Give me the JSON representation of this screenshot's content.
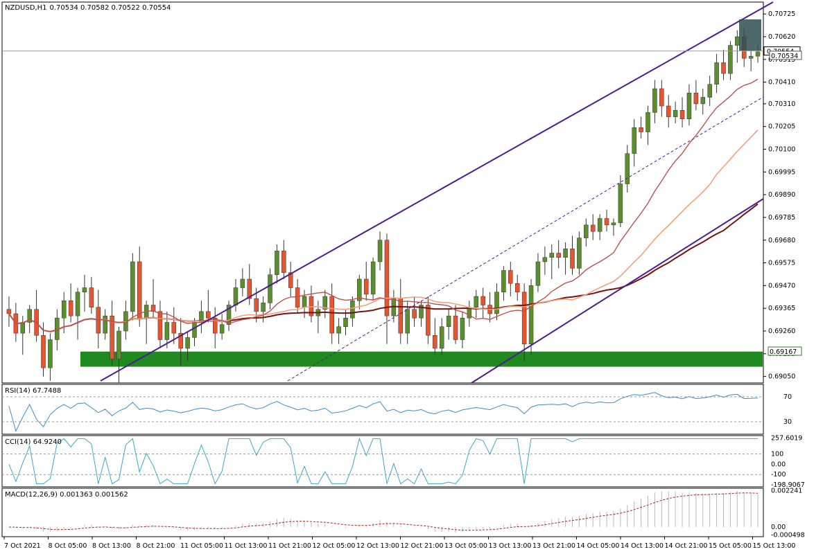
{
  "header": {
    "symbol": "NZDUSD,H1",
    "ohlc": "0.70534 0.70582 0.70522 0.70554"
  },
  "indicators": {
    "rsi_label": "RSI(14) 67.7488",
    "cci_label": "CCI(14) 64.9240",
    "macd_label": "MACD(12,26,9) 0.001363 0.001562"
  },
  "price_axis": {
    "ticks": [
      "0.70725",
      "0.70620",
      "0.70515",
      "0.70410",
      "0.70310",
      "0.70205",
      "0.70100",
      "0.69995",
      "0.69890",
      "0.69785",
      "0.69680",
      "0.69575",
      "0.69470",
      "0.69365",
      "0.69260",
      "0.69155",
      "0.69050"
    ],
    "current_price": "0.70554",
    "label_2": "0.70534",
    "zone_label": "0.69167"
  },
  "rsi_axis": {
    "ticks": [
      "70",
      "30"
    ]
  },
  "cci_axis": {
    "ticks": [
      "257.6019",
      "100",
      "0.00",
      "-100",
      "-198.9067"
    ]
  },
  "macd_axis": {
    "ticks": [
      "0.002241",
      "0.00",
      "-0.000498"
    ]
  },
  "time_axis": {
    "labels": [
      "7 Oct 2021",
      "8 Oct 05:00",
      "8 Oct 13:00",
      "8 Oct 21:00",
      "11 Oct 05:00",
      "11 Oct 13:00",
      "11 Oct 21:00",
      "12 Oct 05:00",
      "12 Oct 13:00",
      "12 Oct 21:00",
      "13 Oct 05:00",
      "13 Oct 13:00",
      "13 Oct 21:00",
      "14 Oct 05:00",
      "14 Oct 13:00",
      "14 Oct 21:00",
      "15 Oct 05:00",
      "15 Oct 13:00"
    ]
  },
  "colors": {
    "bull": "#5b8f2e",
    "bear": "#e8542e",
    "channel": "#4b1d8f",
    "zone": "#1f8a1f",
    "ma_fast": "#c0504d",
    "ma_mid": "#f2a07b",
    "ma_slow": "#7a1010",
    "rsi_line": "#3a8fc4",
    "cci_line": "#3aa8c4",
    "macd_signal": "#b22222"
  },
  "chart_data": {
    "type": "candlestick",
    "symbol": "NZDUSD",
    "timeframe": "H1",
    "ylim": [
      0.6902,
      0.7078
    ],
    "candles": [
      [
        0.6936,
        0.6942,
        0.6928,
        0.6934
      ],
      [
        0.6934,
        0.6939,
        0.6921,
        0.6925
      ],
      [
        0.6925,
        0.6933,
        0.6915,
        0.693
      ],
      [
        0.693,
        0.6938,
        0.6925,
        0.6936
      ],
      [
        0.6936,
        0.6945,
        0.6921,
        0.6924
      ],
      [
        0.6924,
        0.693,
        0.6905,
        0.6909
      ],
      [
        0.6909,
        0.6925,
        0.6903,
        0.6922
      ],
      [
        0.6922,
        0.6936,
        0.6917,
        0.6932
      ],
      [
        0.6932,
        0.6944,
        0.6925,
        0.694
      ],
      [
        0.694,
        0.6948,
        0.693,
        0.6933
      ],
      [
        0.6933,
        0.6946,
        0.6922,
        0.6944
      ],
      [
        0.6944,
        0.6952,
        0.6935,
        0.6946
      ],
      [
        0.6946,
        0.6951,
        0.6934,
        0.6937
      ],
      [
        0.6937,
        0.6945,
        0.6918,
        0.6925
      ],
      [
        0.6925,
        0.6936,
        0.6922,
        0.6933
      ],
      [
        0.6933,
        0.694,
        0.691,
        0.6913
      ],
      [
        0.6913,
        0.6928,
        0.6902,
        0.6926
      ],
      [
        0.6926,
        0.694,
        0.6922,
        0.6935
      ],
      [
        0.6935,
        0.6962,
        0.6931,
        0.6958
      ],
      [
        0.6958,
        0.6965,
        0.6928,
        0.6932
      ],
      [
        0.6932,
        0.694,
        0.692,
        0.6938
      ],
      [
        0.6938,
        0.695,
        0.6932,
        0.6935
      ],
      [
        0.6935,
        0.694,
        0.6918,
        0.6922
      ],
      [
        0.6922,
        0.6935,
        0.6918,
        0.693
      ],
      [
        0.693,
        0.6937,
        0.692,
        0.6925
      ],
      [
        0.6925,
        0.6932,
        0.691,
        0.6918
      ],
      [
        0.6918,
        0.6926,
        0.6912,
        0.6923
      ],
      [
        0.6923,
        0.6932,
        0.6919,
        0.693
      ],
      [
        0.693,
        0.694,
        0.6925,
        0.6935
      ],
      [
        0.6935,
        0.6945,
        0.693,
        0.6932
      ],
      [
        0.6932,
        0.6937,
        0.6918,
        0.6925
      ],
      [
        0.6925,
        0.6934,
        0.6922,
        0.6929
      ],
      [
        0.6929,
        0.694,
        0.6926,
        0.6938
      ],
      [
        0.6938,
        0.695,
        0.6935,
        0.6946
      ],
      [
        0.6946,
        0.6955,
        0.6942,
        0.695
      ],
      [
        0.695,
        0.6957,
        0.6938,
        0.6941
      ],
      [
        0.6941,
        0.6946,
        0.693,
        0.6935
      ],
      [
        0.6935,
        0.6942,
        0.693,
        0.6939
      ],
      [
        0.6939,
        0.6955,
        0.6936,
        0.6952
      ],
      [
        0.6952,
        0.6966,
        0.6948,
        0.6963
      ],
      [
        0.6963,
        0.6968,
        0.695,
        0.6953
      ],
      [
        0.6953,
        0.6958,
        0.6942,
        0.6946
      ],
      [
        0.6946,
        0.695,
        0.6934,
        0.6937
      ],
      [
        0.6937,
        0.6945,
        0.6932,
        0.6942
      ],
      [
        0.6942,
        0.6947,
        0.693,
        0.6933
      ],
      [
        0.6933,
        0.694,
        0.6925,
        0.6936
      ],
      [
        0.6936,
        0.6945,
        0.6932,
        0.6942
      ],
      [
        0.6942,
        0.6948,
        0.692,
        0.6925
      ],
      [
        0.6925,
        0.6932,
        0.692,
        0.6928
      ],
      [
        0.6928,
        0.6936,
        0.6924,
        0.6932
      ],
      [
        0.6932,
        0.6942,
        0.6928,
        0.694
      ],
      [
        0.694,
        0.6952,
        0.6936,
        0.695
      ],
      [
        0.695,
        0.6958,
        0.694,
        0.6943
      ],
      [
        0.6943,
        0.696,
        0.694,
        0.6958
      ],
      [
        0.6958,
        0.6972,
        0.6954,
        0.6968
      ],
      [
        0.6968,
        0.6971,
        0.692,
        0.6933
      ],
      [
        0.6933,
        0.6945,
        0.693,
        0.6941
      ],
      [
        0.6941,
        0.695,
        0.692,
        0.6925
      ],
      [
        0.6925,
        0.694,
        0.692,
        0.6936
      ],
      [
        0.6936,
        0.6942,
        0.6928,
        0.6932
      ],
      [
        0.6932,
        0.694,
        0.6928,
        0.6938
      ],
      [
        0.6938,
        0.6942,
        0.692,
        0.6924
      ],
      [
        0.6924,
        0.6932,
        0.6915,
        0.6918
      ],
      [
        0.6918,
        0.6932,
        0.6915,
        0.6928
      ],
      [
        0.6928,
        0.6936,
        0.6922,
        0.6933
      ],
      [
        0.6933,
        0.6938,
        0.692,
        0.6922
      ],
      [
        0.6922,
        0.6935,
        0.6918,
        0.6932
      ],
      [
        0.6932,
        0.694,
        0.6928,
        0.6937
      ],
      [
        0.6937,
        0.6945,
        0.6932,
        0.6942
      ],
      [
        0.6942,
        0.6946,
        0.6932,
        0.6938
      ],
      [
        0.6938,
        0.6944,
        0.693,
        0.6934
      ],
      [
        0.6934,
        0.6948,
        0.6931,
        0.6944
      ],
      [
        0.6944,
        0.6956,
        0.694,
        0.6954
      ],
      [
        0.6954,
        0.6958,
        0.6942,
        0.6948
      ],
      [
        0.6948,
        0.6952,
        0.694,
        0.6944
      ],
      [
        0.6944,
        0.6948,
        0.6912,
        0.692
      ],
      [
        0.692,
        0.695,
        0.6915,
        0.6947
      ],
      [
        0.6947,
        0.6962,
        0.6944,
        0.6958
      ],
      [
        0.6958,
        0.6965,
        0.6952,
        0.696
      ],
      [
        0.696,
        0.6966,
        0.695,
        0.6962
      ],
      [
        0.6962,
        0.6968,
        0.6955,
        0.696
      ],
      [
        0.696,
        0.6967,
        0.6952,
        0.6964
      ],
      [
        0.6964,
        0.697,
        0.6952,
        0.6955
      ],
      [
        0.6955,
        0.6972,
        0.6952,
        0.6969
      ],
      [
        0.6969,
        0.6978,
        0.6965,
        0.6975
      ],
      [
        0.6975,
        0.698,
        0.6968,
        0.6972
      ],
      [
        0.6972,
        0.698,
        0.6968,
        0.6978
      ],
      [
        0.6978,
        0.6982,
        0.6972,
        0.6975
      ],
      [
        0.6975,
        0.6978,
        0.697,
        0.6976
      ],
      [
        0.6976,
        0.6998,
        0.6974,
        0.6994
      ],
      [
        0.6994,
        0.7012,
        0.699,
        0.7008
      ],
      [
        0.7008,
        0.7024,
        0.7002,
        0.702
      ],
      [
        0.702,
        0.7025,
        0.7015,
        0.7018
      ],
      [
        0.7018,
        0.703,
        0.7012,
        0.7027
      ],
      [
        0.7027,
        0.7042,
        0.7022,
        0.7038
      ],
      [
        0.7038,
        0.7042,
        0.7025,
        0.703
      ],
      [
        0.703,
        0.7035,
        0.702,
        0.7025
      ],
      [
        0.7025,
        0.7032,
        0.7022,
        0.7028
      ],
      [
        0.7028,
        0.7034,
        0.702,
        0.7024
      ],
      [
        0.7024,
        0.704,
        0.7021,
        0.7036
      ],
      [
        0.7036,
        0.7042,
        0.7028,
        0.7031
      ],
      [
        0.7031,
        0.7038,
        0.7026,
        0.7034
      ],
      [
        0.7034,
        0.7044,
        0.703,
        0.704
      ],
      [
        0.704,
        0.7054,
        0.7036,
        0.705
      ],
      [
        0.705,
        0.7056,
        0.7042,
        0.7045
      ],
      [
        0.7045,
        0.706,
        0.7042,
        0.7058
      ],
      [
        0.7058,
        0.7065,
        0.705,
        0.7062
      ],
      [
        0.7062,
        0.7066,
        0.7048,
        0.7052
      ],
      [
        0.7052,
        0.7056,
        0.7046,
        0.7053
      ],
      [
        0.7053,
        0.7058,
        0.705,
        0.7055
      ]
    ]
  }
}
